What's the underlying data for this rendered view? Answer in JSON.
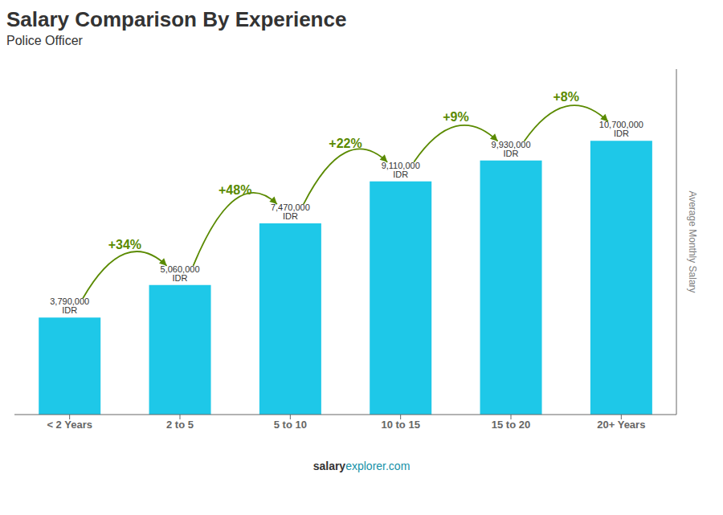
{
  "chart_data": {
    "type": "bar",
    "title": "Salary Comparison By Experience",
    "subtitle": "Police Officer",
    "categories": [
      "< 2 Years",
      "2 to 5",
      "5 to 10",
      "10 to 15",
      "15 to 20",
      "20+ Years"
    ],
    "values": [
      3790000,
      5060000,
      7470000,
      9110000,
      9930000,
      10700000
    ],
    "value_labels": [
      "3,790,000 IDR",
      "5,060,000 IDR",
      "7,470,000 IDR",
      "9,110,000 IDR",
      "9,930,000 IDR",
      "10,700,000 IDR"
    ],
    "data_labels": true,
    "annotations": [
      "+34%",
      "+48%",
      "+22%",
      "+9%",
      "+8%"
    ],
    "ylabel": "Average Monthly Salary",
    "footer": [
      "salary",
      "explorer.com"
    ],
    "color": "#1EC8E8",
    "ylim": [
      0,
      13500000
    ],
    "grid": false,
    "tick_labels": "x"
  }
}
